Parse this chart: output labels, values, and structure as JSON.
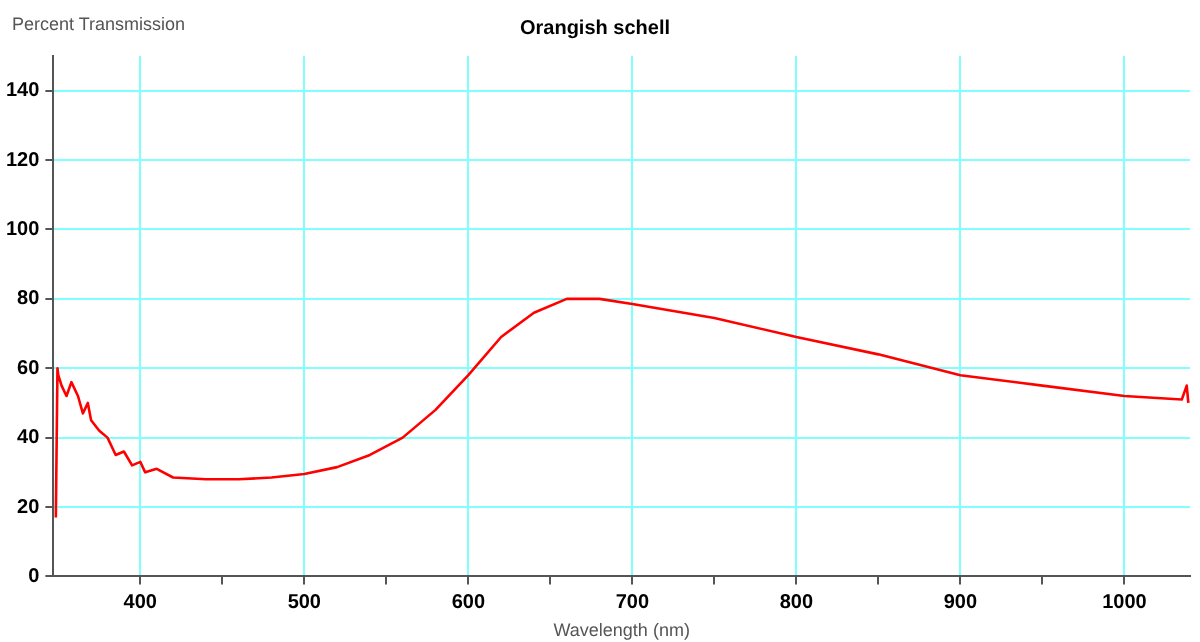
{
  "chart_data": {
    "type": "line",
    "title": "Orangish schell",
    "xlabel": "Wavelength (nm)",
    "ylabel": "Percent Transmission",
    "xlim": [
      347,
      1040
    ],
    "ylim": [
      0,
      150
    ],
    "xticks": [
      400,
      {
        "value": 450,
        "label": null
      },
      500,
      {
        "value": 550,
        "label": null
      },
      600,
      {
        "value": 650,
        "label": null
      },
      700,
      {
        "value": 750,
        "label": null
      },
      800,
      {
        "value": 850,
        "label": null
      },
      900,
      {
        "value": 950,
        "label": null
      },
      1000
    ],
    "yticks": [
      0,
      20,
      40,
      60,
      80,
      100,
      120,
      140
    ],
    "grid": true,
    "marker": "none",
    "line_style": "solid",
    "series": [
      {
        "color": "#ff0000",
        "x": [
          348.5,
          349.5,
          350,
          352,
          355,
          358,
          362,
          365,
          368,
          370,
          375,
          380,
          385,
          390,
          395,
          400,
          403,
          410,
          420,
          440,
          460,
          480,
          500,
          520,
          540,
          560,
          580,
          600,
          620,
          640,
          660,
          680,
          700,
          750,
          800,
          850,
          900,
          950,
          1000,
          1035,
          1038,
          1039
        ],
        "values": [
          17,
          60,
          58,
          55,
          52,
          56,
          52,
          47,
          50,
          45,
          42,
          40,
          35,
          36,
          32,
          33,
          30,
          31,
          28.5,
          28,
          28,
          28.5,
          29.5,
          31.5,
          35,
          40,
          48,
          58,
          69,
          76,
          80,
          80,
          78.5,
          74.5,
          69,
          64,
          58,
          55,
          52,
          51,
          55,
          50
        ]
      }
    ]
  }
}
